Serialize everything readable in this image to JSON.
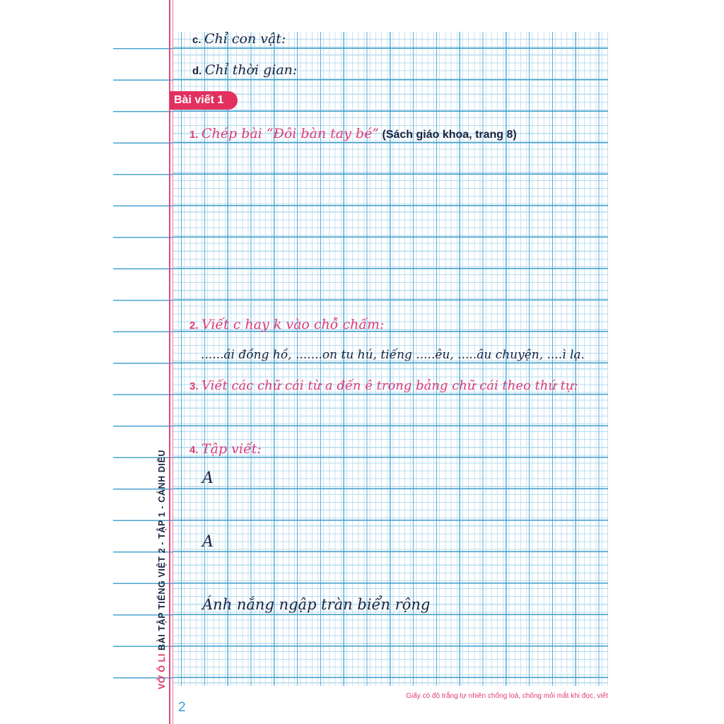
{
  "sections": {
    "c": {
      "num": "c.",
      "text": "Chỉ con vật:"
    },
    "d": {
      "num": "d.",
      "text": "Chỉ thời gian:"
    }
  },
  "badge": "Bài viết 1",
  "items": [
    {
      "num": "1.",
      "text": "Chép bài “Đôi bàn tay bé”",
      "note": "(Sách giáo khoa, trang 8)"
    },
    {
      "num": "2.",
      "text": "Viết c hay k vào chỗ chấm:",
      "line": "......ái đồng hồ, .......on tu hú, tiếng .....êu, .....âu chuyện, ....ì lạ."
    },
    {
      "num": "3.",
      "text": "Viết các chữ cái từ a đến ê trong bảng chữ cái theo thứ tự:"
    },
    {
      "num": "4.",
      "text": "Tập viết:",
      "practice": [
        "A",
        "A",
        "Ánh nắng ngập tràn biển rộng"
      ]
    }
  ],
  "side_label": {
    "brand": "VỞ Ô LI",
    "title": "BÀI TẬP TIẾNG VIỆT 2 - TẬP 1 - CÁNH DIỀU"
  },
  "footer_note": "Giấy có độ trắng tự nhiên chống loá, chống mỏi mắt khi đọc, viết",
  "page_number": "2",
  "colors": {
    "accent_pink": "#e2305f",
    "grid_blue": "#3d9ccc"
  }
}
